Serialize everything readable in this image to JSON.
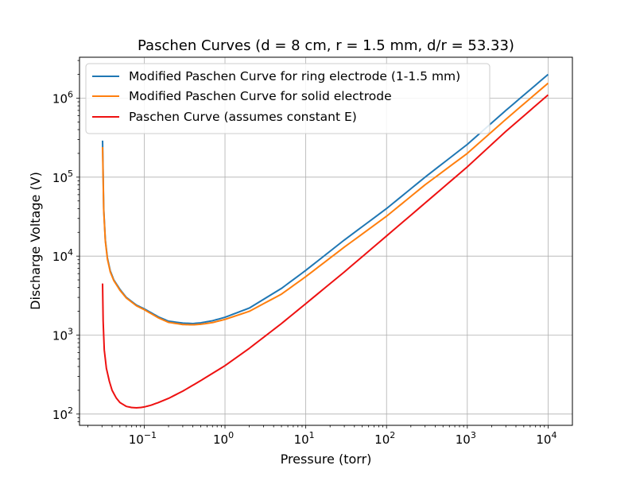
{
  "chart_data": {
    "type": "line",
    "title": "Paschen Curves (d = 8 cm, r = 1.5 mm, d/r = 53.33)",
    "xlabel": "Pressure (torr)",
    "ylabel": "Discharge Voltage (V)",
    "xscale": "log",
    "yscale": "log",
    "xlim": [
      0.0158,
      20000
    ],
    "ylim": [
      72,
      3300000
    ],
    "grid": true,
    "legend_position": "top-left",
    "x_ticks": [
      {
        "base": "10",
        "exp": "−1",
        "value": 0.1
      },
      {
        "base": "10",
        "exp": "0",
        "value": 1
      },
      {
        "base": "10",
        "exp": "1",
        "value": 10
      },
      {
        "base": "10",
        "exp": "2",
        "value": 100
      },
      {
        "base": "10",
        "exp": "3",
        "value": 1000
      },
      {
        "base": "10",
        "exp": "4",
        "value": 10000
      }
    ],
    "y_ticks": [
      {
        "base": "10",
        "exp": "2",
        "value": 100
      },
      {
        "base": "10",
        "exp": "3",
        "value": 1000
      },
      {
        "base": "10",
        "exp": "4",
        "value": 10000
      },
      {
        "base": "10",
        "exp": "5",
        "value": 100000
      },
      {
        "base": "10",
        "exp": "6",
        "value": 1000000
      }
    ],
    "series": [
      {
        "name": "Modified Paschen Curve for ring electrode (1-1.5 mm)",
        "color": "#1f77b4",
        "x": [
          0.0305,
          0.0315,
          0.033,
          0.035,
          0.038,
          0.042,
          0.05,
          0.06,
          0.08,
          0.1,
          0.15,
          0.2,
          0.3,
          0.4,
          0.5,
          0.7,
          1,
          2,
          5,
          10,
          30,
          100,
          300,
          1000,
          3000,
          10000
        ],
        "y": [
          290000,
          40000,
          16000,
          9500,
          6500,
          5000,
          3800,
          3000,
          2400,
          2150,
          1700,
          1500,
          1420,
          1400,
          1430,
          1520,
          1680,
          2200,
          3900,
          6600,
          16000,
          40000,
          100000,
          260000,
          700000,
          2000000
        ]
      },
      {
        "name": "Modified Paschen Curve for solid electrode",
        "color": "#ff7f0e",
        "x": [
          0.0305,
          0.0315,
          0.033,
          0.035,
          0.038,
          0.042,
          0.05,
          0.06,
          0.08,
          0.1,
          0.15,
          0.2,
          0.3,
          0.4,
          0.5,
          0.7,
          1,
          2,
          5,
          10,
          30,
          100,
          300,
          1000,
          3000,
          10000
        ],
        "y": [
          240000,
          38000,
          15500,
          9200,
          6300,
          4900,
          3700,
          2950,
          2350,
          2100,
          1650,
          1450,
          1360,
          1350,
          1370,
          1440,
          1580,
          2000,
          3300,
          5500,
          13000,
          32000,
          80000,
          200000,
          540000,
          1550000
        ]
      },
      {
        "name": "Paschen Curve (assumes constant E)",
        "color": "#ee1111",
        "x": [
          0.0305,
          0.031,
          0.032,
          0.034,
          0.037,
          0.04,
          0.045,
          0.05,
          0.06,
          0.07,
          0.08,
          0.09,
          0.1,
          0.12,
          0.15,
          0.2,
          0.3,
          0.5,
          1,
          2,
          5,
          10,
          30,
          100,
          300,
          1000,
          3000,
          10000
        ],
        "y": [
          4500,
          1500,
          650,
          380,
          260,
          200,
          160,
          140,
          125,
          121,
          120,
          121,
          123,
          129,
          140,
          158,
          195,
          265,
          410,
          680,
          1400,
          2500,
          6300,
          18000,
          47000,
          135000,
          380000,
          1100000
        ]
      }
    ]
  }
}
